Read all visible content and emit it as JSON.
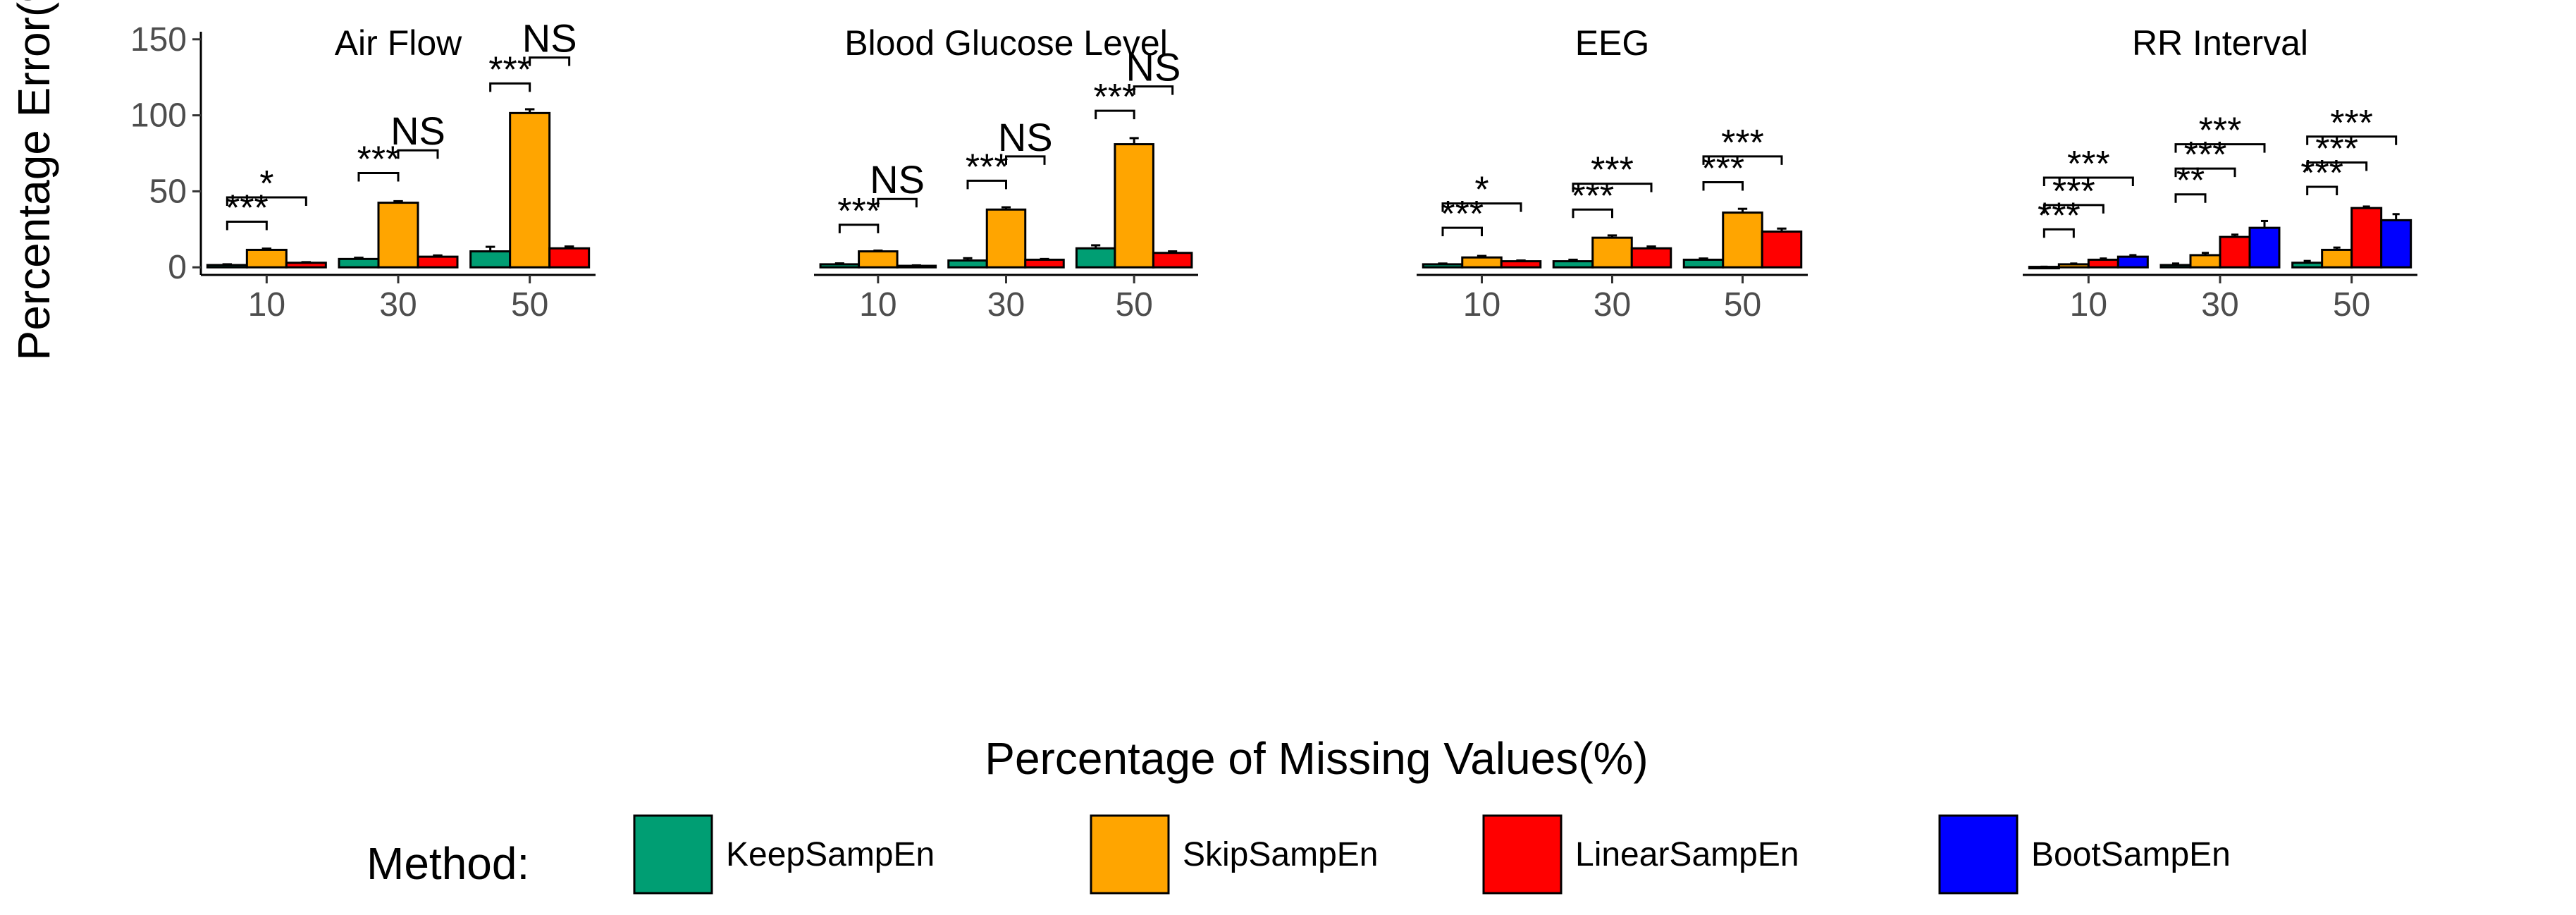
{
  "chart_data": {
    "type": "bar",
    "ylabel": "Percentage Error(%)",
    "xlabel": "Percentage of Missing Values(%)",
    "ylim": [
      -5,
      155
    ],
    "yticks": [
      0,
      50,
      100,
      150
    ],
    "categories": [
      "10",
      "30",
      "50"
    ],
    "legend": {
      "title": "Method:",
      "placement": "bottom",
      "items": [
        {
          "name": "KeepSampEn",
          "color": "#009E73"
        },
        {
          "name": "SkipSampEn",
          "color": "#FFA500"
        },
        {
          "name": "LinearSampEn",
          "color": "#FF0000"
        },
        {
          "name": "BootSampEn",
          "color": "#0000FF"
        }
      ]
    },
    "panels": [
      {
        "title": "Air Flow",
        "methods": [
          0,
          1,
          2
        ],
        "values": [
          [
            1.5,
            11.5,
            3
          ],
          [
            5.5,
            42.5,
            7
          ],
          [
            10.5,
            101.5,
            12.5
          ]
        ],
        "errors": [
          [
            0.5,
            0.8,
            0.4
          ],
          [
            0.8,
            1,
            0.8
          ],
          [
            3,
            2.5,
            1.2
          ]
        ],
        "sig": [
          [
            {
              "a": 0,
              "b": 1,
              "y": 30,
              "label": "***"
            },
            {
              "a": 0,
              "b": 2,
              "y": 46,
              "label": "*"
            }
          ],
          [
            {
              "a": 0,
              "b": 1,
              "y": 62,
              "label": "***"
            },
            {
              "a": 1,
              "b": 2,
              "y": 77,
              "label": "NS"
            }
          ],
          [
            {
              "a": 0,
              "b": 1,
              "y": 121,
              "label": "***"
            },
            {
              "a": 1,
              "b": 2,
              "y": 138,
              "label": "NS"
            }
          ]
        ]
      },
      {
        "title": "Blood Glucose Level",
        "methods": [
          0,
          1,
          2
        ],
        "values": [
          [
            2,
            10.5,
            1
          ],
          [
            4.5,
            38,
            5
          ],
          [
            12.5,
            81,
            9.5
          ]
        ],
        "errors": [
          [
            0.6,
            0.5,
            0.3
          ],
          [
            1.5,
            1.5,
            0.5
          ],
          [
            2,
            4,
            1
          ]
        ],
        "sig": [
          [
            {
              "a": 0,
              "b": 1,
              "y": 28,
              "label": "***"
            },
            {
              "a": 1,
              "b": 2,
              "y": 45,
              "label": "NS"
            }
          ],
          [
            {
              "a": 0,
              "b": 1,
              "y": 57,
              "label": "***"
            },
            {
              "a": 1,
              "b": 2,
              "y": 73,
              "label": "NS"
            }
          ],
          [
            {
              "a": 0,
              "b": 1,
              "y": 103,
              "label": "***"
            },
            {
              "a": 1,
              "b": 2,
              "y": 119,
              "label": "NS"
            }
          ]
        ]
      },
      {
        "title": "EEG",
        "methods": [
          0,
          1,
          2
        ],
        "values": [
          [
            2,
            6.5,
            4
          ],
          [
            4,
            19.5,
            12.5
          ],
          [
            5,
            36,
            23.5
          ]
        ],
        "errors": [
          [
            0.5,
            1,
            0.5
          ],
          [
            1,
            1.5,
            1.2
          ],
          [
            0.8,
            2.5,
            2
          ]
        ],
        "sig": [
          [
            {
              "a": 0,
              "b": 1,
              "y": 26,
              "label": "***"
            },
            {
              "a": 0,
              "b": 2,
              "y": 42,
              "label": "*"
            }
          ],
          [
            {
              "a": 0,
              "b": 1,
              "y": 38,
              "label": "***"
            },
            {
              "a": 0,
              "b": 2,
              "y": 55,
              "label": "***"
            }
          ],
          [
            {
              "a": 0,
              "b": 1,
              "y": 56,
              "label": "***"
            },
            {
              "a": 0,
              "b": 2,
              "y": 73,
              "label": "***"
            }
          ]
        ]
      },
      {
        "title": "RR Interval",
        "methods": [
          0,
          1,
          2,
          3
        ],
        "values": [
          [
            0.3,
            2,
            5,
            7
          ],
          [
            1.5,
            8,
            20,
            26
          ],
          [
            3,
            11.5,
            39,
            31
          ]
        ],
        "errors": [
          [
            0.1,
            0.5,
            0.8,
            1
          ],
          [
            1,
            1.5,
            1.5,
            4.5
          ],
          [
            1.2,
            1.5,
            1,
            4
          ]
        ],
        "sig": [
          [
            {
              "a": 0,
              "b": 1,
              "y": 25,
              "label": "***"
            },
            {
              "a": 0,
              "b": 2,
              "y": 41,
              "label": "***"
            },
            {
              "a": 0,
              "b": 3,
              "y": 59,
              "label": "***"
            }
          ],
          [
            {
              "a": 0,
              "b": 1,
              "y": 48,
              "label": "**"
            },
            {
              "a": 0,
              "b": 2,
              "y": 65,
              "label": "***"
            },
            {
              "a": 0,
              "b": 3,
              "y": 81,
              "label": "***"
            }
          ],
          [
            {
              "a": 0,
              "b": 1,
              "y": 53,
              "label": "***"
            },
            {
              "a": 0,
              "b": 2,
              "y": 69,
              "label": "***"
            },
            {
              "a": 0,
              "b": 3,
              "y": 86,
              "label": "***"
            }
          ]
        ]
      }
    ]
  }
}
